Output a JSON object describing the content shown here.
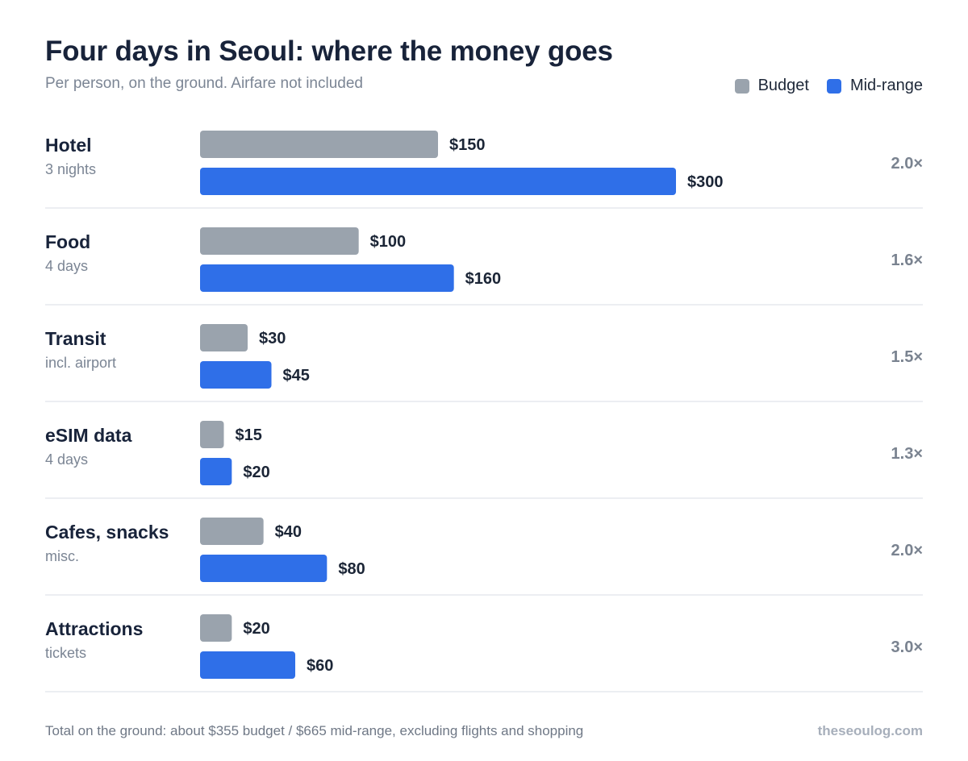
{
  "header": {
    "title": "Four days in Seoul: where the money goes",
    "subtitle": "Per person, on the ground. Airfare not included"
  },
  "colors": {
    "budget": "#9aa3ad",
    "midrange": "#2f6fe8"
  },
  "chart_data": {
    "type": "bar",
    "orientation": "horizontal",
    "title": "Four days in Seoul: where the money goes",
    "subtitle": "Per person, on the ground. Airfare not included",
    "categories": [
      "Hotel",
      "Food",
      "Transit",
      "eSIM data",
      "Cafes, snacks",
      "Attractions"
    ],
    "sublabels": [
      "3 nights",
      "4 days",
      "incl. airport",
      "4 days",
      "misc.",
      "tickets"
    ],
    "series": [
      {
        "name": "Budget",
        "values": [
          150,
          100,
          30,
          15,
          40,
          20
        ],
        "labels": [
          "$150",
          "$100",
          "$30",
          "$15",
          "$40",
          "$20"
        ]
      },
      {
        "name": "Mid-range",
        "values": [
          300,
          160,
          45,
          20,
          80,
          60
        ],
        "labels": [
          "$300",
          "$160",
          "$45",
          "$20",
          "$80",
          "$60"
        ]
      }
    ],
    "ratios": [
      "2.0×",
      "1.6×",
      "1.5×",
      "1.3×",
      "2.0×",
      "3.0×"
    ],
    "xlim": [
      0,
      300
    ],
    "grid": false,
    "legend_position": "top-right"
  },
  "footer": {
    "note": "Total on the ground: about $355 budget / $665 mid-range, excluding flights and shopping",
    "brand": "theseoulog.com"
  }
}
